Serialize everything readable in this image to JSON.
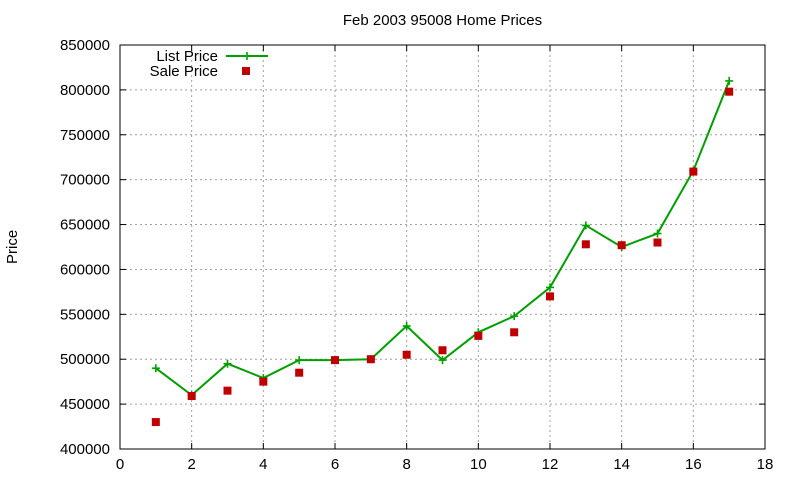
{
  "chart_data": {
    "type": "line",
    "title": "Feb 2003 95008 Home Prices",
    "xlabel": "",
    "ylabel": "Price",
    "xlim": [
      0,
      18
    ],
    "ylim": [
      400000,
      850000
    ],
    "x_ticks": [
      0,
      2,
      4,
      6,
      8,
      10,
      12,
      14,
      16,
      18
    ],
    "y_ticks": [
      400000,
      450000,
      500000,
      550000,
      600000,
      650000,
      700000,
      750000,
      800000,
      850000
    ],
    "grid": true,
    "legend_position": "top-left",
    "series": [
      {
        "name": "List Price",
        "style": "lines+points",
        "marker": "plus",
        "color": "#00a000",
        "x": [
          1,
          2,
          3,
          4,
          5,
          6,
          7,
          8,
          9,
          10,
          11,
          12,
          13,
          14,
          15,
          16,
          17
        ],
        "y": [
          490000,
          460000,
          495000,
          479000,
          499000,
          499000,
          500000,
          537000,
          499000,
          530000,
          548000,
          580000,
          649000,
          625000,
          640000,
          710000,
          810000
        ]
      },
      {
        "name": "Sale Price",
        "style": "points",
        "marker": "square",
        "color": "#c00000",
        "x": [
          1,
          2,
          3,
          4,
          5,
          6,
          7,
          8,
          9,
          10,
          11,
          12,
          13,
          14,
          15,
          16,
          17
        ],
        "y": [
          430000,
          459000,
          465000,
          475000,
          485000,
          499000,
          500000,
          505000,
          510000,
          526000,
          530000,
          570000,
          628000,
          627000,
          630000,
          709000,
          798000
        ]
      }
    ]
  }
}
